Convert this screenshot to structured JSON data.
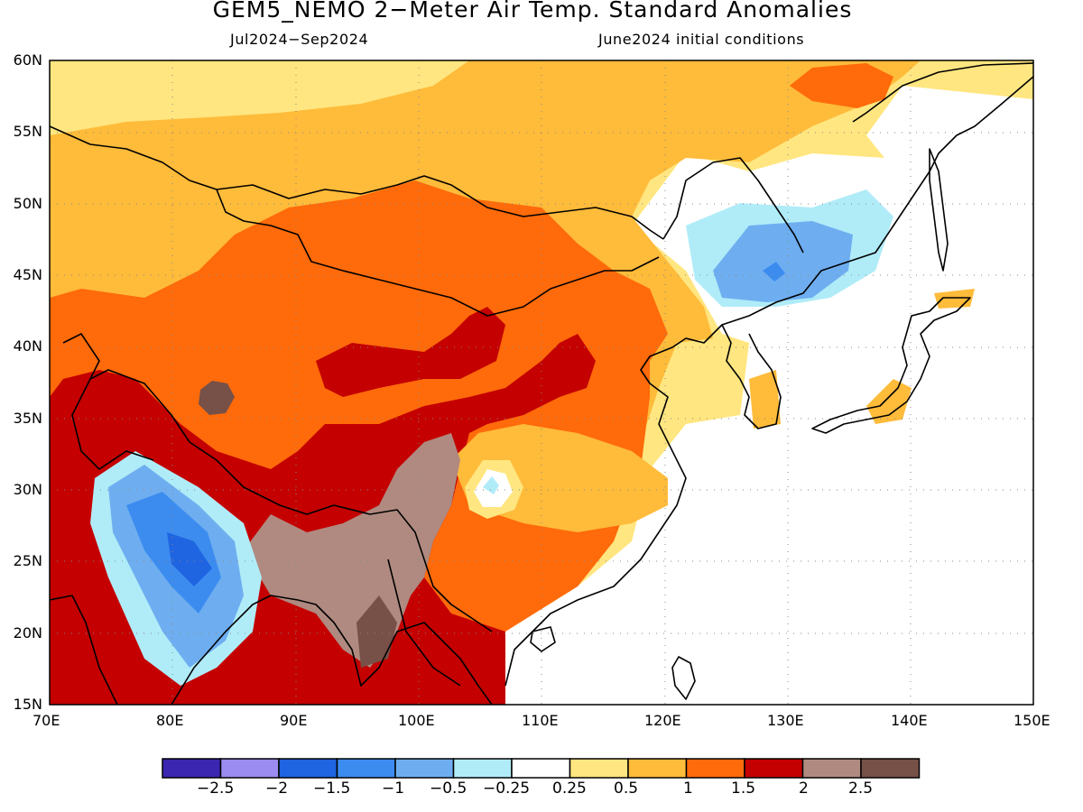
{
  "title": "GEM5_NEMO 2−Meter Air Temp. Standard Anomalies",
  "subtitle_left": "Jul2024−Sep2024",
  "subtitle_right": "June2024 initial conditions",
  "lat_labels": [
    "60N",
    "55N",
    "50N",
    "45N",
    "40N",
    "35N",
    "30N",
    "25N",
    "20N",
    "15N"
  ],
  "lon_labels": [
    "70E",
    "80E",
    "90E",
    "100E",
    "110E",
    "120E",
    "130E",
    "140E",
    "150E"
  ],
  "legend": {
    "colors": [
      "#3a26b0",
      "#9a8cf0",
      "#1f64e0",
      "#3c8cf0",
      "#6eaef0",
      "#b0ecf8",
      "#ffffff",
      "#ffe680",
      "#ffbb3a",
      "#ff6a0a",
      "#c40000",
      "#b08a80",
      "#775048"
    ],
    "labels": [
      "−2.5",
      "−2",
      "−1.5",
      "−1",
      "−0.5",
      "−0.25",
      "0.25",
      "0.5",
      "1",
      "1.5",
      "2",
      "2.5"
    ]
  },
  "palette": {
    "white": "#ffffff",
    "light_yellow": "#ffe680",
    "orange": "#ffbb3a",
    "dark_orange": "#ff6a0a",
    "red": "#c40000",
    "pinkish_brown": "#b08a80",
    "dark_brown": "#775048",
    "pale_cyan": "#b0ecf8",
    "light_blue": "#6eaef0",
    "blue": "#3c8cf0",
    "medium_blue": "#1f64e0"
  }
}
